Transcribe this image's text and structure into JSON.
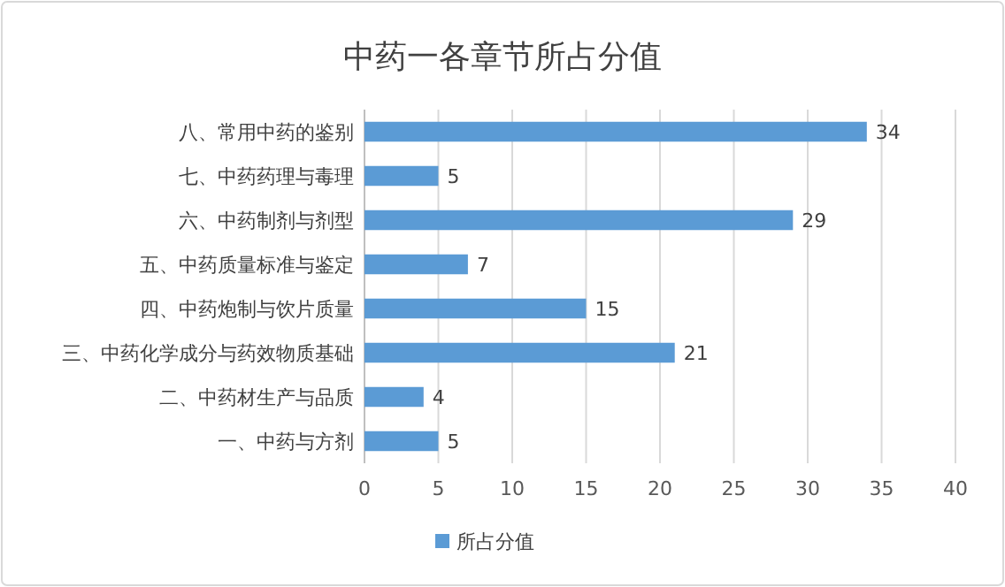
{
  "chart_data": {
    "type": "bar",
    "orientation": "horizontal",
    "title": "中药一各章节所占分值",
    "categories": [
      "八、常用中药的鉴别",
      "七、中药药理与毒理",
      "六、中药制剂与剂型",
      "五、中药质量标准与鉴定",
      "四、中药炮制与饮片质量",
      "三、中药化学成分与药效物质基础",
      "二、中药材生产与品质",
      "一、中药与方剂"
    ],
    "series": [
      {
        "name": "所占分值",
        "color": "#5b9bd5",
        "values": [
          34,
          5,
          29,
          7,
          15,
          21,
          4,
          5
        ]
      }
    ],
    "xlim": [
      0,
      40
    ],
    "xticks": [
      0,
      5,
      10,
      15,
      20,
      25,
      30,
      35,
      40
    ],
    "grid": "x",
    "legend": "bottom",
    "data_labels": true
  }
}
